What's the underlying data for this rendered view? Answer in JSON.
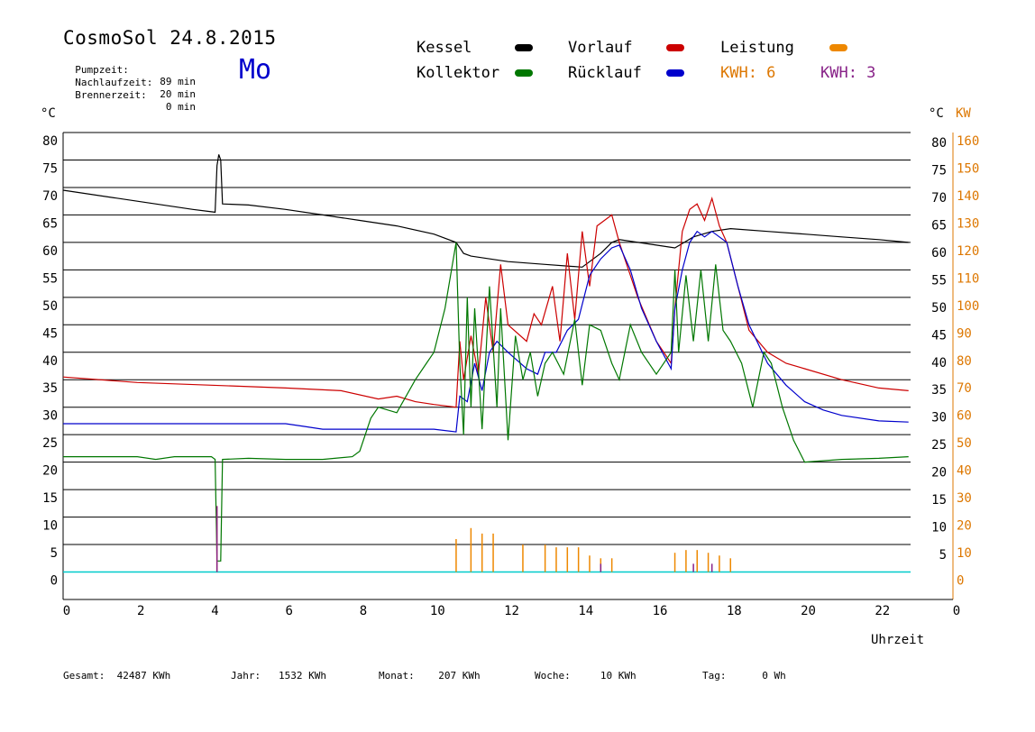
{
  "header": {
    "title": "CosmoSol 24.8.2015",
    "day": "Mo",
    "stats": [
      {
        "label": "Pumpzeit:",
        "value": "89 min"
      },
      {
        "label": "Nachlaufzeit:",
        "value": "20 min"
      },
      {
        "label": "Brennerzeit:",
        "value": "0 min"
      }
    ]
  },
  "legend": {
    "kessel": "Kessel",
    "kollektor": "Kollektor",
    "vorlauf": "Vorlauf",
    "ruecklauf": "Rücklauf",
    "leistung": "Leistung",
    "kwh1": "KWH: 6",
    "kwh2": "KWH: 3"
  },
  "footer": {
    "gesamt_label": "Gesamt:",
    "gesamt_value": "42487 KWh",
    "jahr_label": "Jahr:",
    "jahr_value": "1532 KWh",
    "monat_label": "Monat:",
    "monat_value": "207 KWh",
    "woche_label": "Woche:",
    "woche_value": "10 KWh",
    "tag_label": "Tag:",
    "tag_value": "0 Wh"
  },
  "colors": {
    "kessel": "#000000",
    "kollektor": "#007700",
    "vorlauf": "#cc0000",
    "ruecklauf": "#0000cc",
    "leistung": "#ee8800",
    "kwh2": "#882288",
    "baseline": "#00cccc"
  },
  "chart_data": {
    "type": "line",
    "title": "CosmoSol 24.8.2015",
    "xlabel": "Uhrzeit",
    "ylabel_left": "°C",
    "ylabel_right_temp": "°C",
    "ylabel_right_power": "KW",
    "xlim": [
      0,
      24
    ],
    "ylim": [
      -5,
      80
    ],
    "x_ticks": [
      "0",
      "2",
      "4",
      "6",
      "8",
      "10",
      "12",
      "14",
      "16",
      "18",
      "20",
      "22",
      "0"
    ],
    "y_ticks": [
      "80",
      "75",
      "70",
      "65",
      "60",
      "55",
      "50",
      "45",
      "40",
      "35",
      "30",
      "25",
      "20",
      "15",
      "10",
      "5",
      "0"
    ],
    "y_ticks_right": [
      "80",
      "75",
      "70",
      "65",
      "60",
      "55",
      "50",
      "45",
      "40",
      "35",
      "30",
      "25",
      "20",
      "15",
      "10",
      "5"
    ],
    "y2_ticks": [
      "160",
      "150",
      "140",
      "130",
      "120",
      "110",
      "100",
      "90",
      "80",
      "70",
      "60",
      "50",
      "40",
      "30",
      "20",
      "10",
      "0"
    ],
    "grid": true,
    "series": [
      {
        "name": "Kessel",
        "color": "#000000",
        "points": [
          [
            0,
            69.5
          ],
          [
            2,
            67.5
          ],
          [
            3.5,
            66
          ],
          [
            4.1,
            65.5
          ],
          [
            4.15,
            74
          ],
          [
            4.2,
            76
          ],
          [
            4.25,
            75
          ],
          [
            4.3,
            67
          ],
          [
            5,
            66.8
          ],
          [
            6,
            66
          ],
          [
            7,
            65
          ],
          [
            8,
            64
          ],
          [
            9,
            63
          ],
          [
            10,
            61.5
          ],
          [
            10.6,
            60
          ],
          [
            10.8,
            58
          ],
          [
            11,
            57.5
          ],
          [
            12,
            56.5
          ],
          [
            13,
            56
          ],
          [
            14,
            55.5
          ],
          [
            14.5,
            58
          ],
          [
            14.8,
            60
          ],
          [
            15,
            60.5
          ],
          [
            16,
            59.5
          ],
          [
            16.5,
            59
          ],
          [
            17,
            61
          ],
          [
            17.5,
            62
          ],
          [
            18,
            62.5
          ],
          [
            19,
            62
          ],
          [
            20,
            61.5
          ],
          [
            21,
            61
          ],
          [
            22,
            60.5
          ],
          [
            22.8,
            60
          ]
        ]
      },
      {
        "name": "Vorlauf",
        "color": "#cc0000",
        "points": [
          [
            0,
            35.5
          ],
          [
            2,
            34.5
          ],
          [
            4,
            34
          ],
          [
            6,
            33.5
          ],
          [
            7.5,
            33
          ],
          [
            8.5,
            31.5
          ],
          [
            9,
            32
          ],
          [
            9.5,
            31
          ],
          [
            10,
            30.5
          ],
          [
            10.6,
            30
          ],
          [
            10.7,
            42
          ],
          [
            10.8,
            35
          ],
          [
            11,
            43
          ],
          [
            11.2,
            36
          ],
          [
            11.4,
            50
          ],
          [
            11.6,
            40
          ],
          [
            11.8,
            56
          ],
          [
            12,
            45
          ],
          [
            12.5,
            42
          ],
          [
            12.7,
            47
          ],
          [
            12.9,
            45
          ],
          [
            13.2,
            52
          ],
          [
            13.4,
            42
          ],
          [
            13.6,
            58
          ],
          [
            13.8,
            46
          ],
          [
            14,
            62
          ],
          [
            14.2,
            52
          ],
          [
            14.4,
            63
          ],
          [
            14.6,
            64
          ],
          [
            14.8,
            65
          ],
          [
            15,
            60
          ],
          [
            15.5,
            50
          ],
          [
            16,
            42
          ],
          [
            16.4,
            38
          ],
          [
            16.5,
            48
          ],
          [
            16.7,
            62
          ],
          [
            16.9,
            66
          ],
          [
            17.1,
            67
          ],
          [
            17.3,
            64
          ],
          [
            17.5,
            68
          ],
          [
            17.7,
            63
          ],
          [
            17.9,
            60
          ],
          [
            18.2,
            52
          ],
          [
            18.5,
            44
          ],
          [
            19,
            40
          ],
          [
            19.5,
            38
          ],
          [
            20,
            37
          ],
          [
            21,
            35
          ],
          [
            22,
            33.5
          ],
          [
            22.8,
            33
          ]
        ]
      },
      {
        "name": "Rücklauf",
        "color": "#0000cc",
        "points": [
          [
            0,
            27
          ],
          [
            2,
            27
          ],
          [
            4,
            27
          ],
          [
            6,
            27
          ],
          [
            6.5,
            26.5
          ],
          [
            7,
            26
          ],
          [
            8,
            26
          ],
          [
            9,
            26
          ],
          [
            10,
            26
          ],
          [
            10.6,
            25.5
          ],
          [
            10.7,
            32
          ],
          [
            10.9,
            31
          ],
          [
            11.1,
            38
          ],
          [
            11.3,
            33
          ],
          [
            11.5,
            40
          ],
          [
            11.7,
            42
          ],
          [
            12,
            40
          ],
          [
            12.5,
            37
          ],
          [
            12.8,
            36
          ],
          [
            13,
            40
          ],
          [
            13.3,
            40
          ],
          [
            13.6,
            44
          ],
          [
            13.9,
            46
          ],
          [
            14.2,
            54
          ],
          [
            14.5,
            57
          ],
          [
            14.8,
            59
          ],
          [
            15,
            59.5
          ],
          [
            15.3,
            55
          ],
          [
            15.6,
            48
          ],
          [
            16,
            42
          ],
          [
            16.4,
            37
          ],
          [
            16.5,
            48
          ],
          [
            16.7,
            55
          ],
          [
            16.9,
            60
          ],
          [
            17.1,
            62
          ],
          [
            17.3,
            61
          ],
          [
            17.5,
            62
          ],
          [
            17.7,
            61
          ],
          [
            17.9,
            60
          ],
          [
            18.2,
            52
          ],
          [
            18.5,
            45
          ],
          [
            19,
            38
          ],
          [
            19.5,
            34
          ],
          [
            20,
            31
          ],
          [
            20.5,
            29.5
          ],
          [
            21,
            28.5
          ],
          [
            22,
            27.5
          ],
          [
            22.8,
            27.3
          ]
        ]
      },
      {
        "name": "Kollektor",
        "color": "#007700",
        "points": [
          [
            0,
            21
          ],
          [
            2,
            21
          ],
          [
            2.5,
            20.5
          ],
          [
            3,
            21
          ],
          [
            4,
            21
          ],
          [
            4.1,
            20.5
          ],
          [
            4.15,
            2
          ],
          [
            4.25,
            2
          ],
          [
            4.3,
            20.5
          ],
          [
            5,
            20.7
          ],
          [
            6,
            20.5
          ],
          [
            7,
            20.5
          ],
          [
            7.8,
            21
          ],
          [
            8,
            22
          ],
          [
            8.3,
            28
          ],
          [
            8.5,
            30
          ],
          [
            9,
            29
          ],
          [
            9.5,
            35
          ],
          [
            9.8,
            38
          ],
          [
            10,
            40
          ],
          [
            10.3,
            48
          ],
          [
            10.5,
            56
          ],
          [
            10.6,
            60
          ],
          [
            10.7,
            38
          ],
          [
            10.8,
            25
          ],
          [
            10.9,
            50
          ],
          [
            11,
            30
          ],
          [
            11.1,
            48
          ],
          [
            11.3,
            26
          ],
          [
            11.5,
            52
          ],
          [
            11.7,
            30
          ],
          [
            11.8,
            48
          ],
          [
            12,
            24
          ],
          [
            12.2,
            43
          ],
          [
            12.4,
            35
          ],
          [
            12.6,
            40
          ],
          [
            12.8,
            32
          ],
          [
            13,
            38
          ],
          [
            13.2,
            40
          ],
          [
            13.5,
            36
          ],
          [
            13.8,
            46
          ],
          [
            14,
            34
          ],
          [
            14.2,
            45
          ],
          [
            14.5,
            44
          ],
          [
            14.8,
            38
          ],
          [
            15,
            35
          ],
          [
            15.3,
            45
          ],
          [
            15.6,
            40
          ],
          [
            16,
            36
          ],
          [
            16.4,
            40
          ],
          [
            16.5,
            55
          ],
          [
            16.6,
            40
          ],
          [
            16.8,
            54
          ],
          [
            17,
            42
          ],
          [
            17.2,
            55
          ],
          [
            17.4,
            42
          ],
          [
            17.6,
            56
          ],
          [
            17.8,
            44
          ],
          [
            18,
            42
          ],
          [
            18.3,
            38
          ],
          [
            18.6,
            30
          ],
          [
            18.9,
            40
          ],
          [
            19.1,
            38
          ],
          [
            19.4,
            30
          ],
          [
            19.7,
            24
          ],
          [
            20,
            20
          ],
          [
            21,
            20.5
          ],
          [
            22,
            20.7
          ],
          [
            22.8,
            21
          ]
        ]
      },
      {
        "name": "Leistung",
        "color": "#ee8800",
        "spikes": [
          [
            4.15,
            12
          ],
          [
            10.6,
            6
          ],
          [
            11,
            8
          ],
          [
            11.3,
            7
          ],
          [
            11.6,
            7
          ],
          [
            12.4,
            5
          ],
          [
            13,
            5
          ],
          [
            13.3,
            4.5
          ],
          [
            13.6,
            4.5
          ],
          [
            13.9,
            4.5
          ],
          [
            14.2,
            3
          ],
          [
            14.5,
            2.5
          ],
          [
            14.8,
            2.5
          ],
          [
            16.5,
            3.5
          ],
          [
            16.8,
            4
          ],
          [
            17.1,
            4
          ],
          [
            17.4,
            3.5
          ],
          [
            17.7,
            3
          ],
          [
            18,
            2.5
          ]
        ]
      },
      {
        "name": "KWH",
        "color": "#882288",
        "spikes": [
          [
            4.15,
            12
          ],
          [
            14.5,
            1.5
          ],
          [
            17,
            1.5
          ],
          [
            17.5,
            1.5
          ]
        ]
      }
    ]
  }
}
